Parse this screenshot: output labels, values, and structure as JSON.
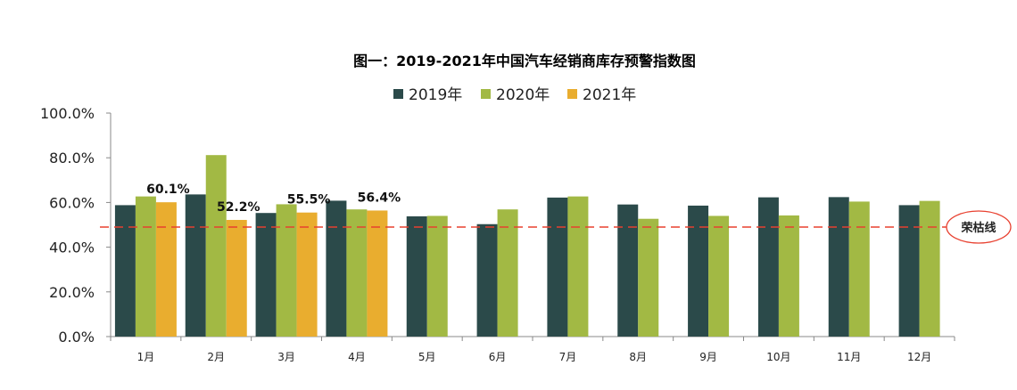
{
  "chart_data": {
    "type": "bar",
    "title": "图一：2019-2021年中国汽车经销商库存预警指数图",
    "xlabel": "",
    "ylabel": "",
    "categories": [
      "1月",
      "2月",
      "3月",
      "4月",
      "5月",
      "6月",
      "7月",
      "8月",
      "9月",
      "10月",
      "11月",
      "12月"
    ],
    "series": [
      {
        "name": "2019年",
        "color": "#2b4a4a",
        "values": [
          58.8,
          63.6,
          55.3,
          60.8,
          53.8,
          50.3,
          62.2,
          59.1,
          58.6,
          62.3,
          62.4,
          58.8
        ]
      },
      {
        "name": "2020年",
        "color": "#a2b944",
        "values": [
          62.7,
          81.2,
          59.2,
          56.9,
          54.0,
          56.9,
          62.7,
          52.7,
          54.0,
          54.2,
          60.4,
          60.7
        ]
      },
      {
        "name": "2021年",
        "color": "#e9ad2f",
        "values": [
          60.1,
          52.2,
          55.5,
          56.4,
          null,
          null,
          null,
          null,
          null,
          null,
          null,
          null
        ]
      }
    ],
    "data_labels": [
      {
        "series": "2021年",
        "category": "1月",
        "text": "60.1%"
      },
      {
        "series": "2021年",
        "category": "2月",
        "text": "52.2%"
      },
      {
        "series": "2021年",
        "category": "3月",
        "text": "55.5%"
      },
      {
        "series": "2021年",
        "category": "4月",
        "text": "56.4%"
      }
    ],
    "ylim": [
      0,
      100
    ],
    "yticks": [
      "0.0%",
      "20.0%",
      "40.0%",
      "60.0%",
      "80.0%",
      "100.0%"
    ],
    "ytick_values": [
      0,
      20,
      40,
      60,
      80,
      100
    ],
    "grid": false,
    "legend_position": "top",
    "reference_line": {
      "value": 49,
      "color": "#e8402f",
      "style": "dashed",
      "label": "荣枯线"
    }
  }
}
